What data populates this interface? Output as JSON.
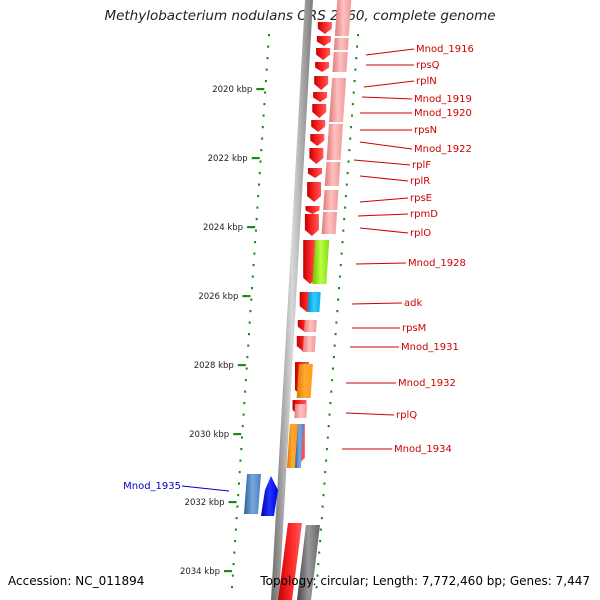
{
  "title": "Methylobacterium nodulans ORS 2060, complete genome",
  "accession_label": "Accession: NC_011894",
  "summary_label": "Topology: circular; Length: 7,772,460 bp; Genes: 7,447",
  "colors": {
    "forward_strand": "#ff1f1f",
    "label_red": "#cc0000",
    "label_blue": "#0000cc",
    "tick": "#1a8a1a",
    "backbone": "#8c8c8c",
    "pink": "#f4a0a0",
    "green": "#99ee22",
    "cyan": "#11bbee",
    "orange": "#ff9911",
    "steel": "#4a7fc0",
    "blue": "#0000ee"
  },
  "ticks": [
    {
      "label": "2020 kbp"
    },
    {
      "label": "2022 kbp"
    },
    {
      "label": "2024 kbp"
    },
    {
      "label": "2026 kbp"
    },
    {
      "label": "2028 kbp"
    },
    {
      "label": "2030 kbp"
    },
    {
      "label": "2032 kbp"
    },
    {
      "label": "2034 kbp"
    }
  ],
  "genes": [
    {
      "name": "Mnod_1916",
      "color": "red"
    },
    {
      "name": "rpsQ",
      "color": "red"
    },
    {
      "name": "rplN",
      "color": "red"
    },
    {
      "name": "Mnod_1919",
      "color": "red"
    },
    {
      "name": "Mnod_1920",
      "color": "red"
    },
    {
      "name": "rpsN",
      "color": "red"
    },
    {
      "name": "Mnod_1922",
      "color": "red"
    },
    {
      "name": "rplF",
      "color": "red"
    },
    {
      "name": "rplR",
      "color": "red"
    },
    {
      "name": "rpsE",
      "color": "red"
    },
    {
      "name": "rpmD",
      "color": "red"
    },
    {
      "name": "rplO",
      "color": "red"
    },
    {
      "name": "Mnod_1928",
      "color": "red"
    },
    {
      "name": "adk",
      "color": "red"
    },
    {
      "name": "rpsM",
      "color": "red"
    },
    {
      "name": "Mnod_1931",
      "color": "red"
    },
    {
      "name": "Mnod_1932",
      "color": "red"
    },
    {
      "name": "rplQ",
      "color": "red"
    },
    {
      "name": "Mnod_1934",
      "color": "red"
    },
    {
      "name": "Mnod_1935",
      "color": "blue"
    }
  ]
}
